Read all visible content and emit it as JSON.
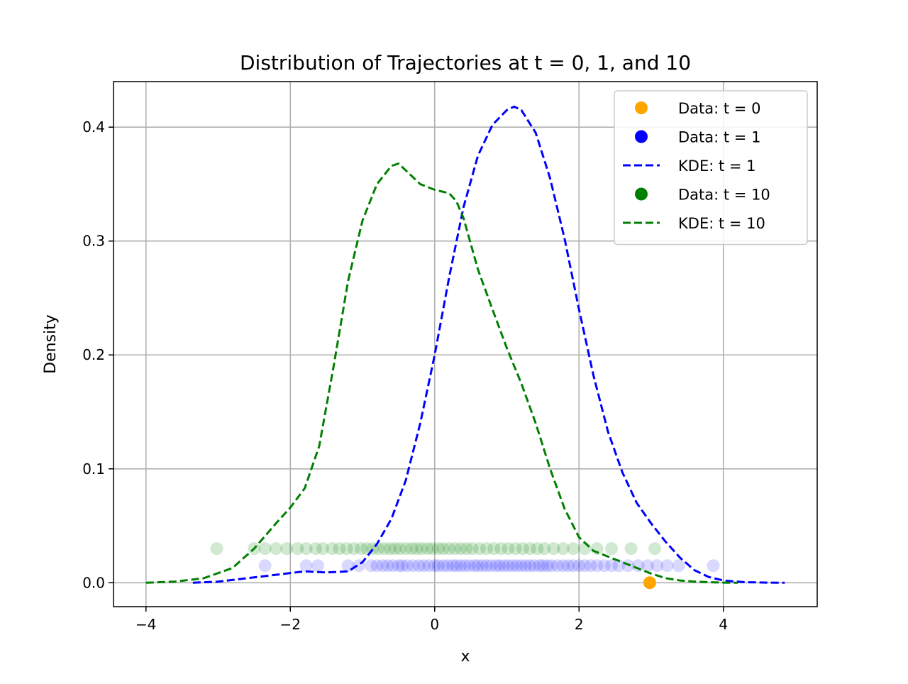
{
  "chart_data": {
    "type": "line",
    "title": "Distribution of Trajectories at t = 0, 1, and 10",
    "xlabel": "x",
    "ylabel": "Density",
    "xlim": [
      -4.45,
      5.3
    ],
    "ylim": [
      -0.021,
      0.44
    ],
    "x_ticks": [
      -4,
      -2,
      0,
      2,
      4
    ],
    "x_tick_labels": [
      "−4",
      "−2",
      "0",
      "2",
      "4"
    ],
    "y_ticks": [
      0.0,
      0.1,
      0.2,
      0.3,
      0.4
    ],
    "y_tick_labels": [
      "0.0",
      "0.1",
      "0.2",
      "0.3",
      "0.4"
    ],
    "grid": true,
    "legend_position": "top-right",
    "legend": [
      {
        "label": "Data: t = 0",
        "color": "#FFA500",
        "kind": "marker"
      },
      {
        "label": "Data: t = 1",
        "color": "#0000FF",
        "kind": "marker"
      },
      {
        "label": "KDE: t = 1",
        "color": "#0000FF",
        "kind": "dashed"
      },
      {
        "label": "Data: t = 10",
        "color": "#008000",
        "kind": "marker"
      },
      {
        "label": "KDE: t = 10",
        "color": "#008000",
        "kind": "dashed"
      }
    ],
    "series": [
      {
        "name": "Data: t = 0",
        "kind": "scatter",
        "color": "#FFA500",
        "alpha": 1.0,
        "y_level": 0.0,
        "x": [
          2.98
        ]
      },
      {
        "name": "Data: t = 1",
        "kind": "scatter",
        "color": "#0000FF",
        "alpha": 0.15,
        "y_level": 0.015,
        "x": [
          -2.35,
          -1.78,
          -1.62,
          -1.2,
          -1.05,
          -0.88,
          -0.8,
          -0.72,
          -0.65,
          -0.58,
          -0.5,
          -0.45,
          -0.38,
          -0.3,
          -0.22,
          -0.15,
          -0.08,
          0.0,
          0.05,
          0.12,
          0.18,
          0.25,
          0.3,
          0.36,
          0.42,
          0.48,
          0.55,
          0.6,
          0.66,
          0.72,
          0.78,
          0.85,
          0.9,
          0.96,
          1.02,
          1.08,
          1.14,
          1.2,
          1.26,
          1.32,
          1.38,
          1.45,
          1.5,
          1.56,
          1.62,
          1.7,
          1.78,
          1.85,
          1.92,
          2.0,
          2.08,
          2.16,
          2.25,
          2.35,
          2.45,
          2.55,
          2.68,
          2.82,
          2.95,
          3.08,
          3.22,
          3.38,
          3.86
        ]
      },
      {
        "name": "KDE: t = 1",
        "kind": "line",
        "dashed": true,
        "color": "#0000FF",
        "x": [
          -3.35,
          -3.0,
          -2.6,
          -2.2,
          -1.8,
          -1.5,
          -1.2,
          -1.0,
          -0.8,
          -0.6,
          -0.4,
          -0.2,
          0.0,
          0.2,
          0.4,
          0.6,
          0.8,
          1.0,
          1.1,
          1.2,
          1.4,
          1.6,
          1.8,
          2.0,
          2.2,
          2.4,
          2.6,
          2.8,
          3.0,
          3.2,
          3.4,
          3.6,
          3.8,
          4.0,
          4.3,
          4.6,
          4.85
        ],
        "y": [
          0.0,
          0.001,
          0.004,
          0.007,
          0.01,
          0.009,
          0.01,
          0.018,
          0.034,
          0.056,
          0.09,
          0.14,
          0.2,
          0.268,
          0.33,
          0.375,
          0.402,
          0.415,
          0.418,
          0.415,
          0.395,
          0.355,
          0.302,
          0.24,
          0.182,
          0.133,
          0.097,
          0.07,
          0.052,
          0.036,
          0.022,
          0.011,
          0.005,
          0.002,
          0.0005,
          0.0001,
          0.0
        ]
      },
      {
        "name": "Data: t = 10",
        "kind": "scatter",
        "color": "#008000",
        "alpha": 0.18,
        "y_level": 0.03,
        "x": [
          -3.02,
          -2.5,
          -2.35,
          -2.2,
          -2.05,
          -1.9,
          -1.78,
          -1.65,
          -1.55,
          -1.42,
          -1.32,
          -1.22,
          -1.12,
          -1.02,
          -0.94,
          -0.86,
          -0.78,
          -0.7,
          -0.62,
          -0.55,
          -0.48,
          -0.4,
          -0.32,
          -0.25,
          -0.18,
          -0.1,
          -0.03,
          0.05,
          0.12,
          0.2,
          0.28,
          0.36,
          0.44,
          0.52,
          0.62,
          0.72,
          0.82,
          0.92,
          1.02,
          1.12,
          1.22,
          1.32,
          1.42,
          1.52,
          1.65,
          1.78,
          1.92,
          2.08,
          2.25,
          2.45,
          2.72,
          3.05
        ]
      },
      {
        "name": "KDE: t = 10",
        "kind": "line",
        "dashed": true,
        "color": "#008000",
        "x": [
          -4.0,
          -3.6,
          -3.2,
          -2.8,
          -2.5,
          -2.2,
          -2.0,
          -1.8,
          -1.6,
          -1.4,
          -1.2,
          -1.0,
          -0.8,
          -0.6,
          -0.5,
          -0.4,
          -0.2,
          0.0,
          0.2,
          0.3,
          0.4,
          0.6,
          0.8,
          1.0,
          1.2,
          1.4,
          1.6,
          1.8,
          2.0,
          2.2,
          2.4,
          2.6,
          2.8,
          3.0,
          3.2,
          3.4,
          3.6,
          3.8,
          4.0,
          4.2
        ],
        "y": [
          0.0,
          0.001,
          0.004,
          0.013,
          0.03,
          0.052,
          0.066,
          0.083,
          0.12,
          0.19,
          0.265,
          0.318,
          0.35,
          0.366,
          0.368,
          0.362,
          0.35,
          0.345,
          0.342,
          0.335,
          0.32,
          0.275,
          0.24,
          0.206,
          0.175,
          0.14,
          0.1,
          0.065,
          0.04,
          0.028,
          0.023,
          0.018,
          0.013,
          0.008,
          0.004,
          0.002,
          0.001,
          0.0005,
          0.0001,
          0.0
        ]
      }
    ]
  }
}
